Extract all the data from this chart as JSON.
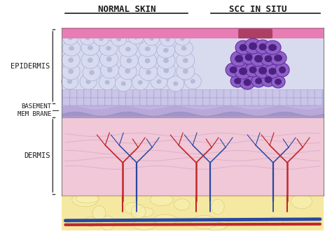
{
  "bg_color": "#ffffff",
  "title_left": "NORMAL SKIN",
  "title_right": "SCC IN SITU",
  "label_epidermis": "EPIDERMIS",
  "label_basement": "BASEMENT\nMEM BRANE",
  "label_dermis": "DERMIS",
  "colors": {
    "stratum_corneum": "#e87db5",
    "epidermis_light": "#c5c8e8",
    "epidermis_mid": "#b0b4e0",
    "basement_membrane": "#9b8fc5",
    "dermis": "#f0c8d8",
    "fat": "#f5e8a0",
    "cell_normal_fill": "#dce0f0",
    "cell_normal_outline": "#a0a8d8",
    "cell_cancer_fill": "#7c4faa",
    "cell_cancer_outline": "#5a3080",
    "blood_red": "#c0282c",
    "blood_blue": "#2848a0",
    "keratinocyte_outline": "#9090c0"
  },
  "figsize": [
    4.74,
    3.48
  ],
  "dpi": 100
}
